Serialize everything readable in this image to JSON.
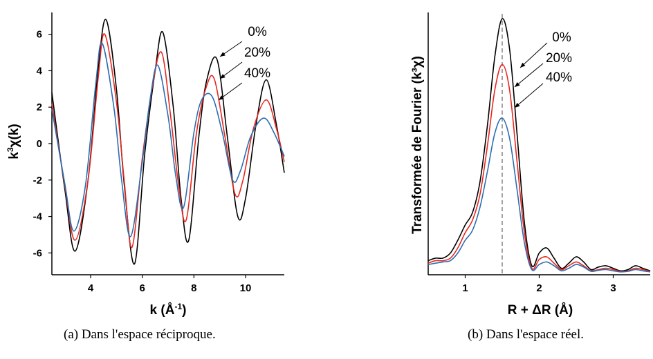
{
  "captions": {
    "a": "(a) Dans l'espace réciproque.",
    "b": "(b) Dans l'espace réel."
  },
  "colors": {
    "s0": "#000000",
    "s20": "#e8261f",
    "s40": "#2a6db0"
  },
  "chart_data": [
    {
      "type": "line",
      "xlabel_parts": [
        "k (Å",
        "-1",
        ")"
      ],
      "ylabel_parts": [
        "k",
        "3",
        "χ(k)"
      ],
      "xlim": [
        2.5,
        11.5
      ],
      "ylim": [
        -7.2,
        7.2
      ],
      "xticks": [
        "4",
        "6",
        "8",
        "10"
      ],
      "yticks": [
        "-6",
        "-4",
        "-2",
        "0",
        "2",
        "4",
        "6"
      ],
      "series": [
        {
          "name": "0%",
          "x": [
            2.5,
            3.0,
            3.4,
            3.9,
            4.3,
            4.6,
            5.0,
            5.3,
            5.7,
            6.1,
            6.5,
            6.8,
            7.2,
            7.5,
            7.8,
            8.2,
            8.5,
            8.9,
            9.3,
            9.7,
            10.0,
            10.4,
            10.8,
            11.2,
            11.5
          ],
          "y": [
            2.8,
            -2.5,
            -5.9,
            -2.0,
            4.2,
            6.8,
            3.0,
            -2.2,
            -6.6,
            -0.5,
            4.0,
            6.1,
            2.0,
            -3.0,
            -5.3,
            0.5,
            3.5,
            4.6,
            0.3,
            -4.0,
            -3.0,
            1.0,
            3.5,
            1.0,
            -1.6
          ]
        },
        {
          "name": "20%",
          "x": [
            2.5,
            3.0,
            3.4,
            3.9,
            4.3,
            4.55,
            5.0,
            5.3,
            5.6,
            6.0,
            6.4,
            6.75,
            7.1,
            7.4,
            7.7,
            8.1,
            8.5,
            8.8,
            9.2,
            9.6,
            9.9,
            10.3,
            10.8,
            11.2,
            11.5
          ],
          "y": [
            2.2,
            -2.3,
            -5.3,
            -2.0,
            3.7,
            6.0,
            2.3,
            -2.0,
            -5.7,
            -0.8,
            3.2,
            5.0,
            1.5,
            -2.2,
            -4.2,
            0.6,
            3.2,
            3.5,
            0.4,
            -2.8,
            -2.0,
            0.8,
            2.4,
            0.8,
            -1.0
          ]
        },
        {
          "name": "40%",
          "x": [
            2.5,
            3.0,
            3.35,
            3.8,
            4.2,
            4.45,
            4.9,
            5.2,
            5.55,
            6.0,
            6.3,
            6.6,
            7.0,
            7.3,
            7.6,
            8.0,
            8.3,
            8.7,
            9.1,
            9.5,
            9.8,
            10.2,
            10.7,
            11.1,
            11.5
          ],
          "y": [
            1.9,
            -2.2,
            -4.8,
            -2.3,
            3.3,
            5.5,
            2.0,
            -2.0,
            -5.1,
            -1.0,
            2.4,
            4.3,
            1.5,
            -1.8,
            -3.5,
            0.6,
            2.4,
            2.6,
            0.6,
            -2.0,
            -1.5,
            0.4,
            1.4,
            0.6,
            -0.7
          ]
        }
      ],
      "annotations": [
        "0%",
        "20%",
        "40%"
      ]
    },
    {
      "type": "line",
      "xlabel_parts": [
        "R + ΔR (Å)"
      ],
      "ylabel": "Transformée de Fourier (k³χ)",
      "xlim": [
        0.5,
        3.5
      ],
      "ylim": [
        0,
        1.03
      ],
      "xticks": [
        "1",
        "2",
        "3"
      ],
      "vline_x": 1.5,
      "series": [
        {
          "name": "0%",
          "x": [
            0.5,
            0.6,
            0.7,
            0.8,
            0.9,
            1.0,
            1.1,
            1.2,
            1.3,
            1.4,
            1.5,
            1.6,
            1.7,
            1.8,
            1.9,
            2.0,
            2.1,
            2.2,
            2.3,
            2.4,
            2.5,
            2.6,
            2.7,
            2.8,
            2.9,
            3.0,
            3.1,
            3.2,
            3.3,
            3.4,
            3.5
          ],
          "y": [
            0.05,
            0.06,
            0.06,
            0.08,
            0.13,
            0.19,
            0.24,
            0.36,
            0.58,
            0.85,
            1.0,
            0.88,
            0.55,
            0.2,
            0.03,
            0.08,
            0.1,
            0.06,
            0.02,
            0.04,
            0.065,
            0.045,
            0.015,
            0.025,
            0.03,
            0.02,
            0.01,
            0.015,
            0.03,
            0.02,
            0.01
          ]
        },
        {
          "name": "20%",
          "x": [
            0.5,
            0.6,
            0.7,
            0.8,
            0.9,
            1.0,
            1.1,
            1.2,
            1.3,
            1.4,
            1.5,
            1.6,
            1.7,
            1.8,
            1.9,
            2.0,
            2.1,
            2.2,
            2.3,
            2.4,
            2.5,
            2.6,
            2.7,
            2.8,
            2.9,
            3.0,
            3.1,
            3.2,
            3.3,
            3.4,
            3.5
          ],
          "y": [
            0.04,
            0.05,
            0.05,
            0.06,
            0.1,
            0.16,
            0.21,
            0.31,
            0.5,
            0.72,
            0.82,
            0.72,
            0.44,
            0.16,
            0.02,
            0.055,
            0.065,
            0.04,
            0.015,
            0.03,
            0.045,
            0.03,
            0.01,
            0.015,
            0.02,
            0.015,
            0.008,
            0.01,
            0.02,
            0.015,
            0.008
          ]
        },
        {
          "name": "40%",
          "x": [
            0.5,
            0.6,
            0.7,
            0.8,
            0.9,
            1.0,
            1.1,
            1.2,
            1.3,
            1.4,
            1.5,
            1.6,
            1.7,
            1.8,
            1.9,
            2.0,
            2.1,
            2.2,
            2.3,
            2.4,
            2.5,
            2.6,
            2.7,
            2.8,
            2.9,
            3.0,
            3.1,
            3.2,
            3.3,
            3.4,
            3.5
          ],
          "y": [
            0.035,
            0.04,
            0.045,
            0.05,
            0.08,
            0.13,
            0.17,
            0.26,
            0.4,
            0.55,
            0.61,
            0.53,
            0.33,
            0.12,
            0.015,
            0.035,
            0.045,
            0.03,
            0.01,
            0.02,
            0.035,
            0.025,
            0.008,
            0.012,
            0.015,
            0.01,
            0.006,
            0.008,
            0.015,
            0.01,
            0.006
          ]
        }
      ],
      "annotations": [
        "0%",
        "20%",
        "40%"
      ]
    }
  ]
}
